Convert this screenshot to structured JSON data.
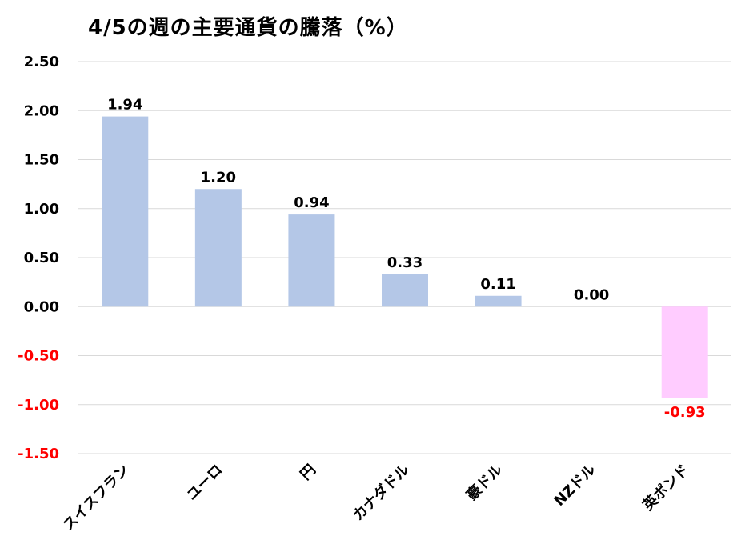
{
  "chart_data": {
    "type": "bar",
    "title": "4/5の週の主要通貨の騰落（%）",
    "categories": [
      "スイスフラン",
      "ユーロ",
      "円",
      "カナダドル",
      "豪ドル",
      "NZドル",
      "英ポンド"
    ],
    "values": [
      1.94,
      1.2,
      0.94,
      0.33,
      0.11,
      0.0,
      -0.93
    ],
    "value_labels": [
      "1.94",
      "1.20",
      "0.94",
      "0.33",
      "0.11",
      "0.00",
      "-0.93"
    ],
    "ylim": [
      -1.5,
      2.5
    ],
    "yticks": [
      2.5,
      2.0,
      1.5,
      1.0,
      0.5,
      0.0,
      -0.5,
      -1.0,
      -1.5
    ],
    "ytick_labels": [
      "2.50",
      "2.00",
      "1.50",
      "1.00",
      "0.50",
      "0.00",
      "-0.50",
      "-1.00",
      "-1.50"
    ],
    "grid": true,
    "xlabel": "",
    "ylabel": ""
  },
  "colors": {
    "positive_bar": "#b4c7e7",
    "negative_bar": "#ffccff",
    "negative_text": "#ff0000",
    "positive_text": "#000000",
    "grid": "#d9d9d9"
  }
}
